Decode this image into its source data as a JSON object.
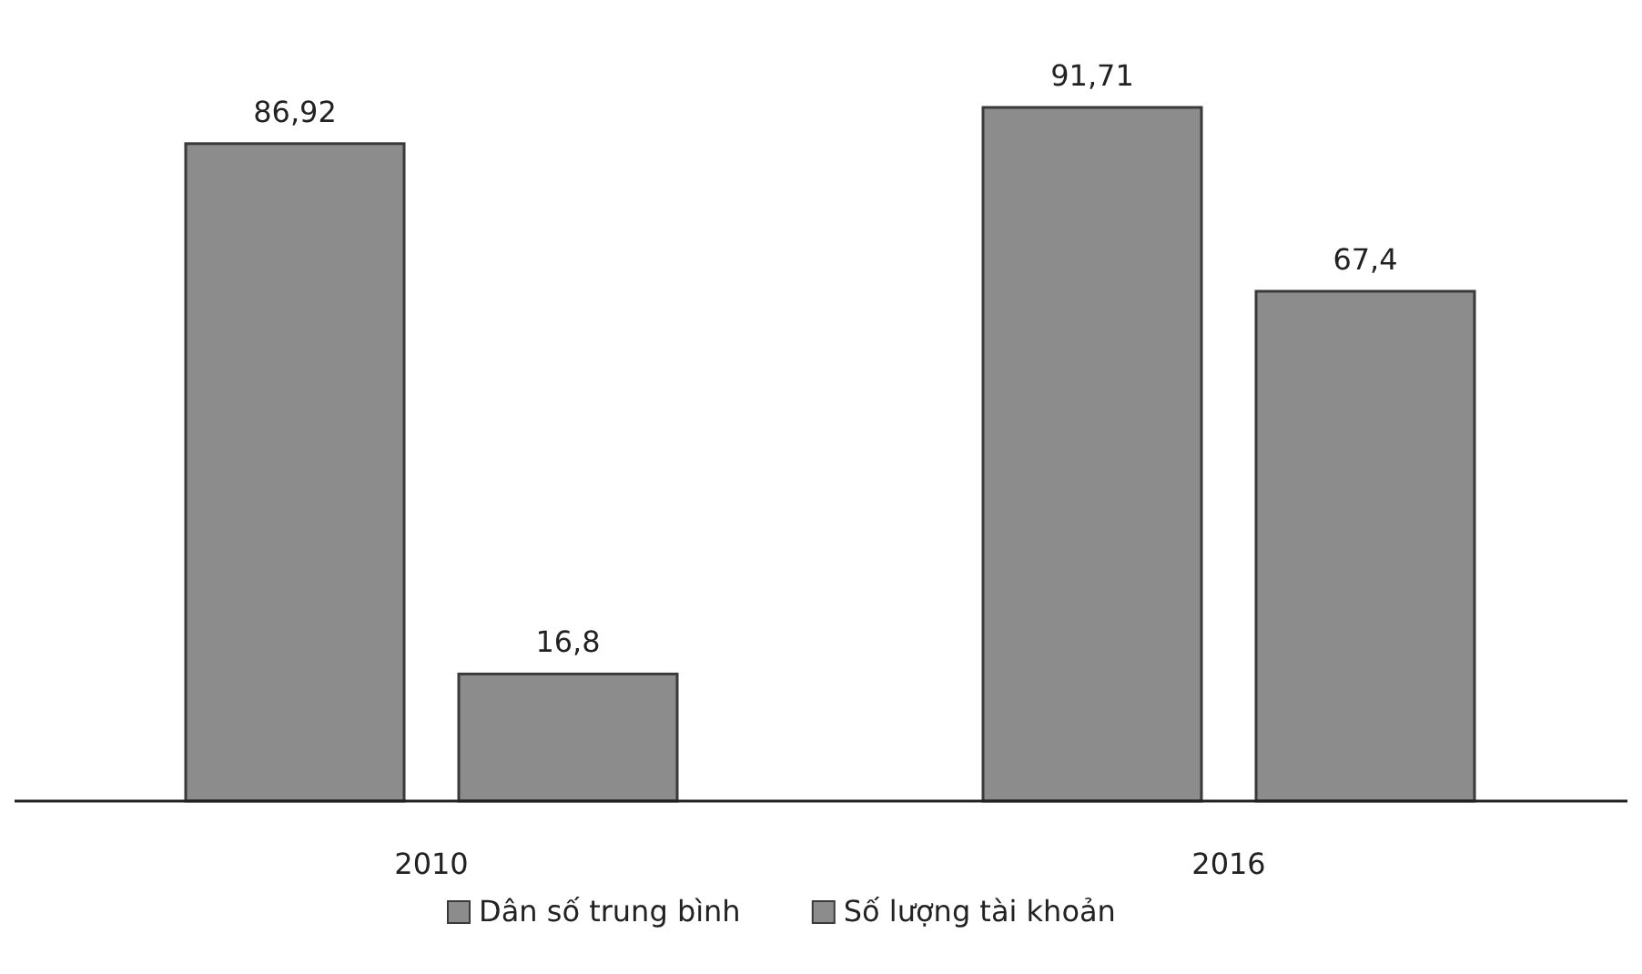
{
  "chart_data": {
    "type": "bar",
    "categories": [
      "2010",
      "2016"
    ],
    "series": [
      {
        "name": "Dân số trung bình",
        "color": "#8c8c8c",
        "values": [
          86.92,
          91.71
        ],
        "value_labels": [
          "86,92",
          "91,71"
        ]
      },
      {
        "name": "Số lượng tài khoản",
        "color": "#8c8c8c",
        "values": [
          16.8,
          67.4
        ],
        "value_labels": [
          "16,8",
          "67,4"
        ]
      }
    ],
    "legend": "bottom"
  }
}
